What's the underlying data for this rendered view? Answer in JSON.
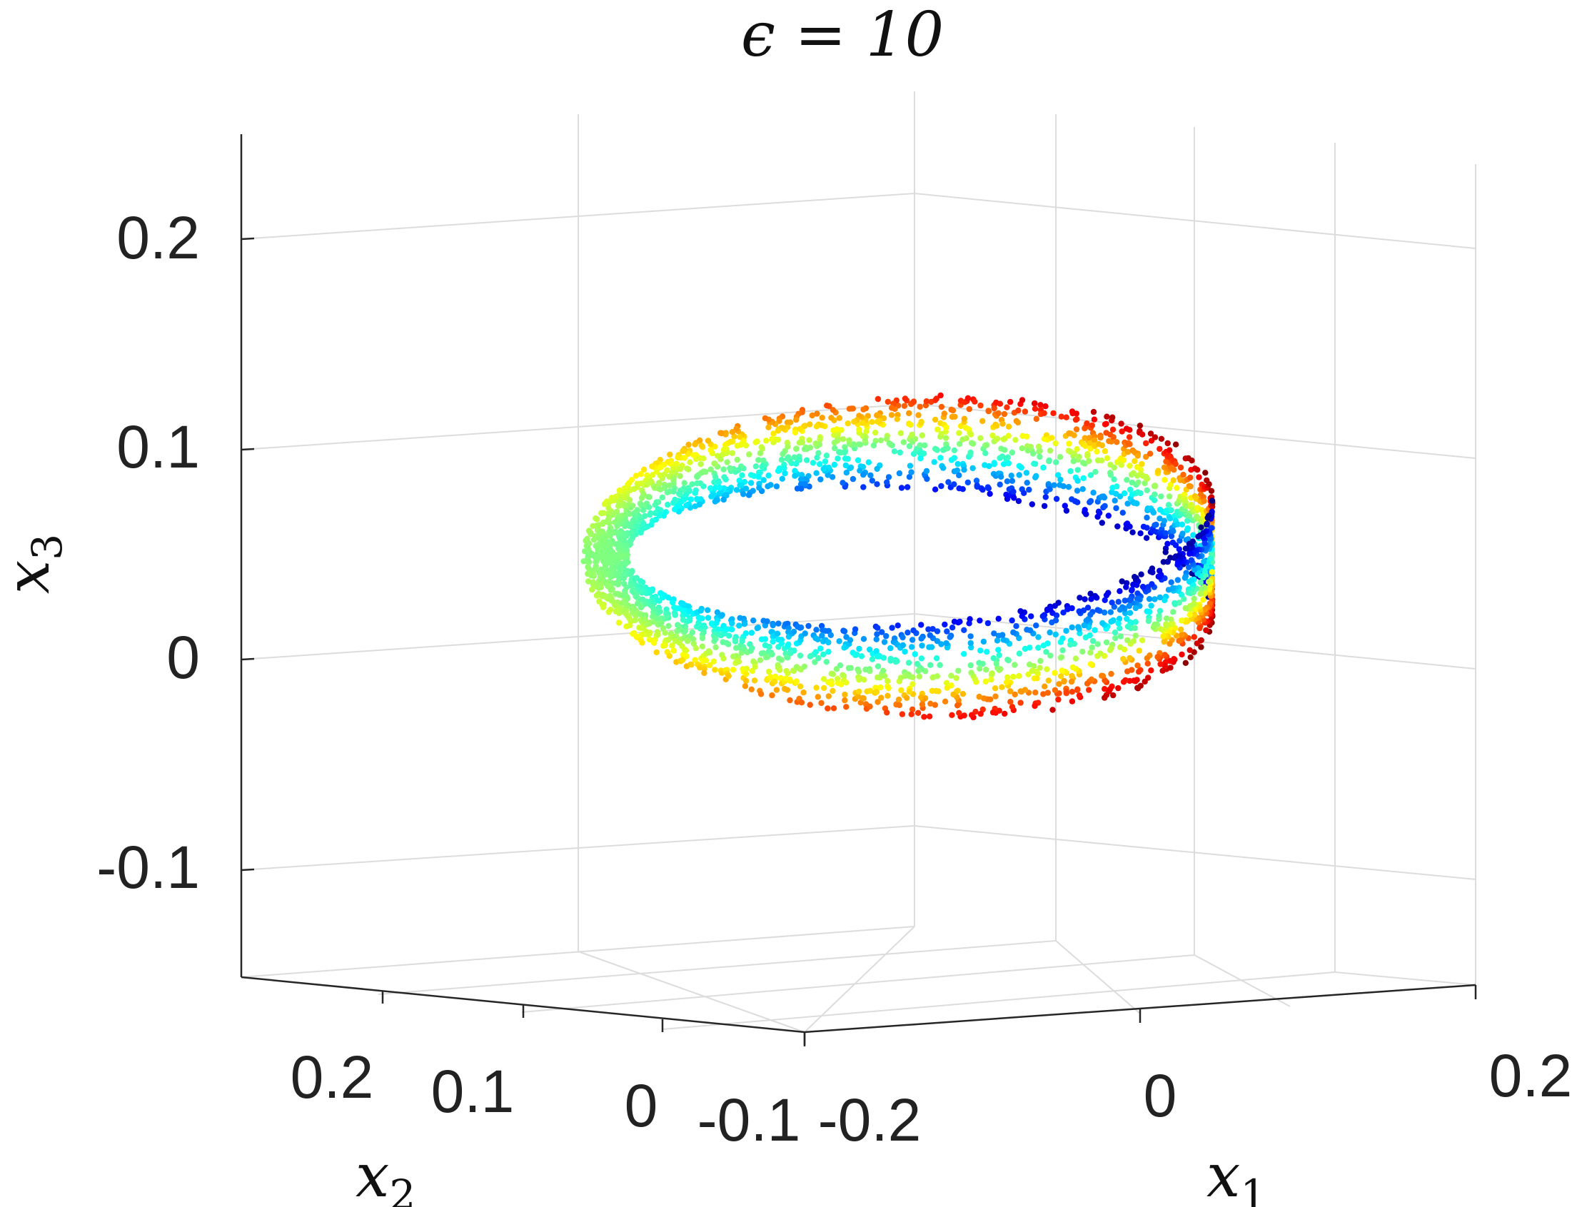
{
  "chart_data": {
    "type": "scatter",
    "title": "ϵ = 10",
    "xlabel": "x₁",
    "ylabel": "x₂",
    "zlabel": "x₃",
    "labels": {
      "x1": {
        "base": "x",
        "sub": "1"
      },
      "x2": {
        "base": "x",
        "sub": "2"
      },
      "x3": {
        "base": "x",
        "sub": "3"
      }
    },
    "x1_ticks": [
      "-0.2",
      "0",
      "0.2"
    ],
    "x2_ticks": [
      "0.2",
      "0.1",
      "0",
      "-0.1"
    ],
    "x3_ticks": [
      "0.2",
      "0.1",
      "0",
      "-0.1"
    ],
    "x1_lim": [
      -0.2,
      0.2
    ],
    "x2_lim": [
      -0.15,
      0.3
    ],
    "x3_lim": [
      -0.15,
      0.25
    ],
    "grid": true,
    "colormap": "jet",
    "colors": [
      "#00008f",
      "#0000ff",
      "#00ffff",
      "#ffff00",
      "#ff0000",
      "#800000"
    ],
    "series": [
      {
        "shape": "mobius-band",
        "point_count": 3000,
        "center": [
          0.0,
          0.05,
          0.05
        ],
        "radius": 0.1,
        "half_width": 0.03,
        "x_range": [
          -0.1,
          0.1
        ],
        "x3_range": [
          -0.03,
          0.13
        ],
        "color_by": "band position"
      }
    ]
  }
}
